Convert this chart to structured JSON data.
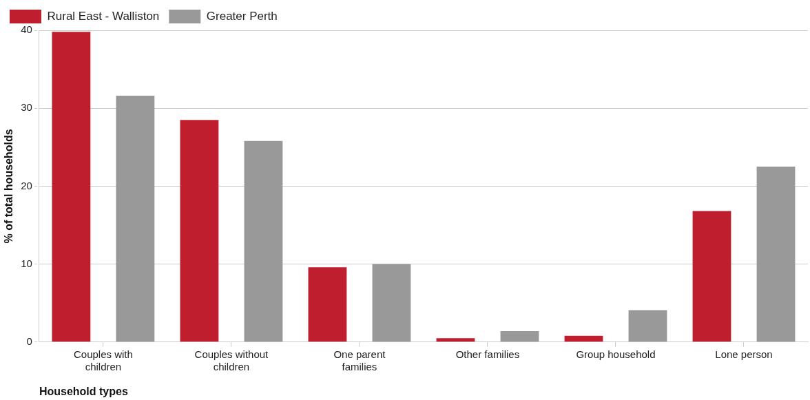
{
  "chart_data": {
    "type": "bar",
    "xlabel": "Household types",
    "ylabel": "% of total households",
    "categories": [
      "Couples with children",
      "Couples without children",
      "One parent families",
      "Other families",
      "Group household",
      "Lone person"
    ],
    "series": [
      {
        "name": "Rural East - Walliston",
        "color": "#be1e2d",
        "values": [
          39.8,
          28.5,
          9.6,
          0.5,
          0.8,
          16.8
        ]
      },
      {
        "name": "Greater Perth",
        "color": "#999999",
        "values": [
          31.6,
          25.8,
          10.0,
          1.4,
          4.1,
          22.5
        ]
      }
    ],
    "ylim": [
      0,
      40
    ],
    "yticks": [
      0,
      10,
      20,
      30,
      40
    ],
    "grid": "y",
    "legend": "top left"
  }
}
